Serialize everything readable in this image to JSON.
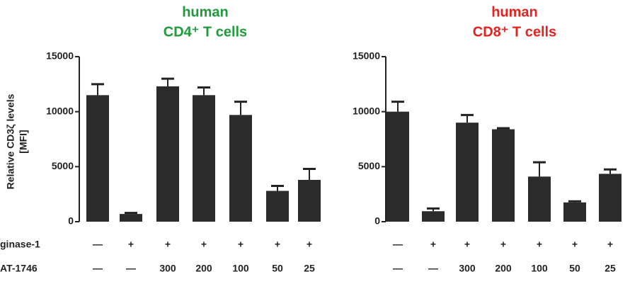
{
  "chart_data": [
    {
      "type": "bar",
      "title": "human",
      "subtitle": "CD4⁺ T cells",
      "title_color": "#1f9a3c",
      "ylabel": [
        "Relative CD3ζ levels",
        "[MFI]"
      ],
      "row_names": [
        "ginase-1",
        "AT-1746"
      ],
      "category_rows": [
        [
          "—",
          "+",
          "+",
          "+",
          "+",
          "+",
          "+"
        ],
        [
          "—",
          "—",
          "300",
          "200",
          "100",
          "50",
          "25"
        ]
      ],
      "values": [
        11500,
        700,
        12300,
        11500,
        9700,
        2800,
        3800
      ],
      "errors": [
        1000,
        100,
        700,
        700,
        1200,
        450,
        1000
      ],
      "color": "#2b2b2b",
      "ylim": [
        0,
        15000
      ],
      "yticks": [
        0,
        5000,
        10000,
        15000
      ]
    },
    {
      "type": "bar",
      "title": "human",
      "subtitle": "CD8⁺ T cells",
      "title_color": "#e2231f",
      "category_rows": [
        [
          "—",
          "+",
          "+",
          "+",
          "+",
          "+",
          "+"
        ],
        [
          "—",
          "—",
          "300",
          "200",
          "100",
          "50",
          "25"
        ]
      ],
      "values": [
        10000,
        950,
        9000,
        8400,
        4100,
        1750,
        4350
      ],
      "errors": [
        900,
        250,
        700,
        100,
        1300,
        100,
        400
      ],
      "color": "#2b2b2b",
      "ylim": [
        0,
        15000
      ],
      "yticks": [
        0,
        5000,
        10000,
        15000
      ]
    }
  ]
}
